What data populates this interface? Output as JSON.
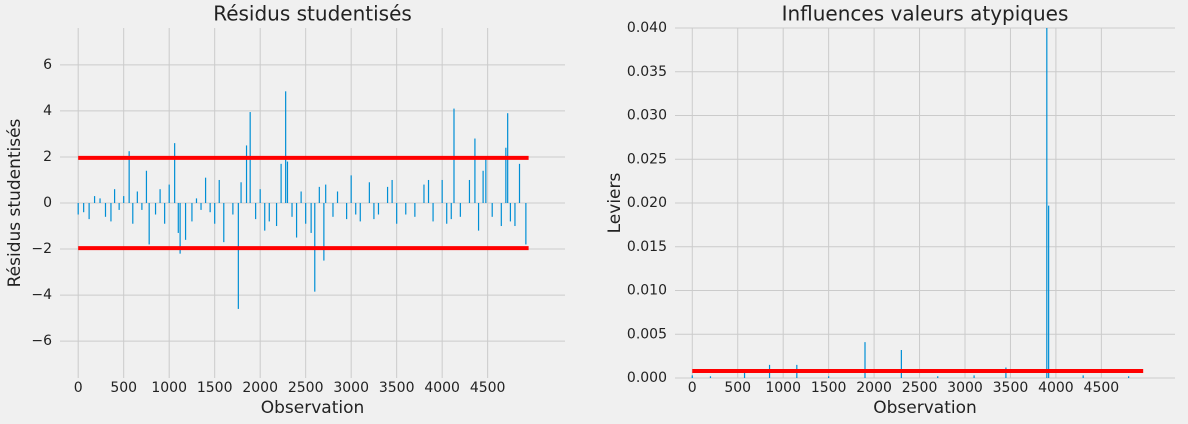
{
  "chart_data": [
    {
      "type": "bar",
      "title": "Résidus studentisés",
      "xlabel": "Observation",
      "ylabel": "Résidus studentisés",
      "color": "#008fd5",
      "grid": true,
      "x": [
        0,
        60,
        120,
        180,
        240,
        300,
        360,
        400,
        450,
        500,
        560,
        600,
        650,
        700,
        750,
        780,
        850,
        900,
        950,
        1000,
        1060,
        1100,
        1120,
        1180,
        1250,
        1300,
        1350,
        1400,
        1450,
        1500,
        1550,
        1600,
        1700,
        1760,
        1790,
        1850,
        1890,
        1950,
        2000,
        2050,
        2100,
        2180,
        2230,
        2280,
        2300,
        2350,
        2400,
        2450,
        2500,
        2560,
        2600,
        2650,
        2700,
        2720,
        2800,
        2850,
        2950,
        3000,
        3050,
        3100,
        3200,
        3250,
        3300,
        3400,
        3450,
        3500,
        3600,
        3700,
        3800,
        3850,
        3900,
        4000,
        4050,
        4100,
        4130,
        4200,
        4300,
        4360,
        4400,
        4450,
        4480,
        4550,
        4650,
        4700,
        4720,
        4750,
        4800,
        4850,
        4920
      ],
      "values": [
        -0.5,
        -0.4,
        -0.7,
        0.3,
        0.2,
        -0.6,
        -0.8,
        0.6,
        -0.3,
        0.3,
        2.25,
        -0.9,
        0.5,
        -0.3,
        1.4,
        -1.8,
        -0.5,
        0.6,
        -0.9,
        0.8,
        2.6,
        -1.3,
        -2.2,
        -1.6,
        -0.8,
        0.2,
        -0.3,
        1.1,
        -0.4,
        -0.9,
        1.0,
        -1.7,
        -0.5,
        -4.6,
        0.9,
        2.5,
        3.95,
        -0.7,
        0.6,
        -1.2,
        -0.8,
        -1.0,
        1.7,
        4.85,
        1.8,
        -0.6,
        -1.5,
        0.5,
        -0.9,
        -1.3,
        -3.85,
        0.7,
        -2.5,
        0.8,
        -0.6,
        0.5,
        -0.7,
        1.2,
        -0.5,
        -0.8,
        0.9,
        -0.7,
        -0.5,
        0.7,
        1.0,
        -0.9,
        -0.5,
        -0.6,
        0.8,
        1.0,
        -0.8,
        1.0,
        -0.9,
        -0.7,
        4.1,
        -0.6,
        1.0,
        2.8,
        -1.2,
        1.4,
        1.9,
        -0.6,
        -1.0,
        2.4,
        3.9,
        -0.8,
        -1.0,
        1.7,
        -1.8
      ],
      "hlines": [
        1.96,
        -1.96
      ],
      "hline_color": "#ff0000",
      "hline_x": [
        0,
        4950
      ],
      "xlim": [
        -200,
        5350
      ],
      "xticks": [
        0,
        500,
        1000,
        1500,
        2000,
        2500,
        3000,
        3500,
        4000,
        4500
      ],
      "ylim": [
        -7.6,
        7.6
      ],
      "yticks": [
        {
          "value": -6,
          "label": "−6"
        },
        {
          "value": -4,
          "label": "−4"
        },
        {
          "value": -2,
          "label": "−2"
        },
        0,
        2,
        4,
        6
      ]
    },
    {
      "type": "bar",
      "title": "Influences valeurs atypiques",
      "xlabel": "Observation",
      "ylabel": "Leviers",
      "color": "#008fd5",
      "grid": true,
      "x": [
        0,
        200,
        575,
        850,
        1150,
        1500,
        1900,
        2300,
        2700,
        3100,
        3450,
        3900,
        3920,
        4300,
        4800
      ],
      "values": [
        0.0003,
        0.0002,
        0.0007,
        0.0015,
        0.0015,
        0.0002,
        0.0041,
        0.0032,
        0.0002,
        0.0003,
        0.0012,
        0.04,
        0.0197,
        0.0003,
        0.0002
      ],
      "hlines": [
        0.0008
      ],
      "hline_color": "#ff0000",
      "hline_x": [
        0,
        4960
      ],
      "xlim": [
        -190,
        5310
      ],
      "xticks": [
        0,
        500,
        1000,
        1500,
        2000,
        2500,
        3000,
        3500,
        4000,
        4500
      ],
      "ylim": [
        0,
        0.04
      ],
      "yticks": [
        {
          "value": 0,
          "label": "0.000"
        },
        {
          "value": 0.005,
          "label": "0.005"
        },
        {
          "value": 0.01,
          "label": "0.010"
        },
        {
          "value": 0.015,
          "label": "0.015"
        },
        {
          "value": 0.02,
          "label": "0.020"
        },
        {
          "value": 0.025,
          "label": "0.025"
        },
        {
          "value": 0.03,
          "label": "0.030"
        },
        {
          "value": 0.035,
          "label": "0.035"
        },
        {
          "value": 0.04,
          "label": "0.040"
        }
      ]
    }
  ]
}
